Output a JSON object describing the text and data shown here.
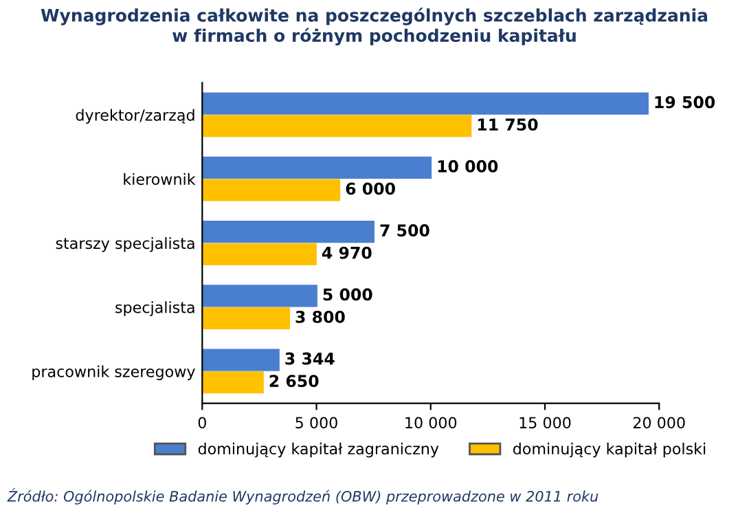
{
  "chart_data": {
    "type": "bar",
    "orientation": "horizontal",
    "title": "Wynagrodzenia całkowite na poszczególnych szczeblach zarządzania\nw firmach o różnym pochodzeniu kapitału",
    "categories": [
      "dyrektor/zarząd",
      "kierownik",
      "starszy specjalista",
      "specjalista",
      "pracownik szeregowy"
    ],
    "series": [
      {
        "name": "dominujący kapitał zagraniczny",
        "color": "#4a7fd0",
        "values": [
          19500,
          10000,
          7500,
          5000,
          3344
        ],
        "value_labels": [
          "19 500",
          "10 000",
          "7 500",
          "5 000",
          "3 344"
        ]
      },
      {
        "name": "dominujący kapitał polski",
        "color": "#ffc000",
        "values": [
          11750,
          6000,
          4970,
          3800,
          2650
        ],
        "value_labels": [
          "11 750",
          "6 000",
          "4 970",
          "3 800",
          "2 650"
        ]
      }
    ],
    "xlim": [
      0,
      20000
    ],
    "xticks": [
      0,
      {
        "value": 5000,
        "label": "5 000"
      },
      {
        "value": 10000,
        "label": "10 000"
      },
      {
        "value": 15000,
        "label": "15 000"
      },
      {
        "value": 20000,
        "label": "20 000"
      }
    ],
    "grid": false,
    "legend": "bottom",
    "annotations": [
      "Źródło: Ogólnopolskie Badanie Wynagrodzeń (OBW) przeprowadzone w 2011 roku"
    ]
  }
}
